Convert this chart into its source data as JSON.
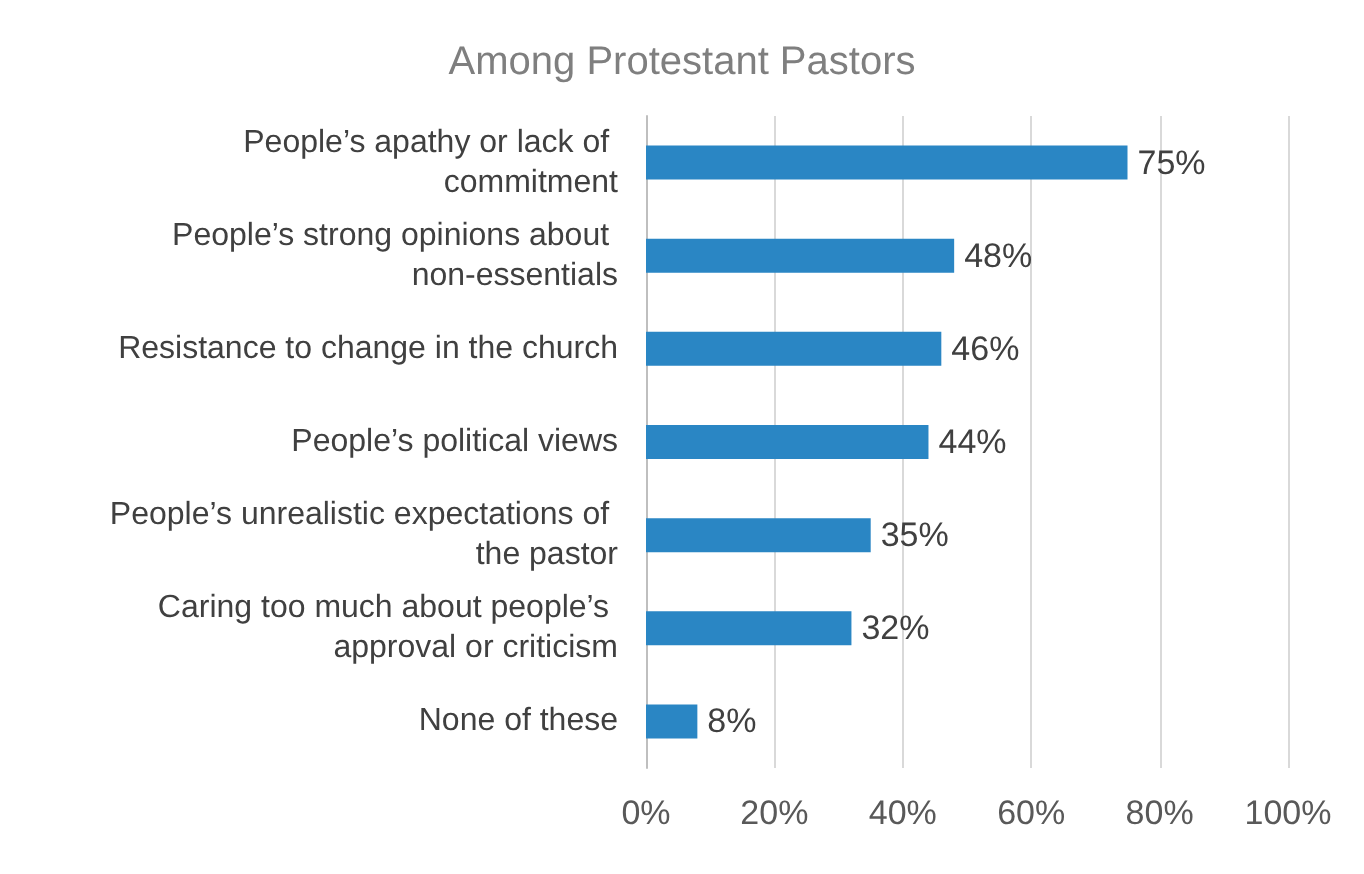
{
  "chart_data": {
    "type": "bar",
    "orientation": "horizontal",
    "title": "Among Protestant Pastors",
    "categories": [
      "People’s apathy or lack of commitment",
      "People’s strong opinions about non-essentials",
      "Resistance to change in the church",
      "People’s political views",
      "People’s unrealistic expectations of the pastor",
      "Caring too much about people’s approval or criticism",
      "None of these"
    ],
    "values": [
      75,
      48,
      46,
      44,
      35,
      32,
      8
    ],
    "value_labels": [
      "75%",
      "48%",
      "46%",
      "44%",
      "35%",
      "32%",
      "8%"
    ],
    "color": "#2a86c4",
    "xlim": [
      0,
      100
    ],
    "xticks": [
      {
        "value": 0,
        "label": "0%"
      },
      {
        "value": 20,
        "label": "20%"
      },
      {
        "value": 40,
        "label": "40%"
      },
      {
        "value": 60,
        "label": "60%"
      },
      {
        "value": 80,
        "label": "80%"
      },
      {
        "value": 100,
        "label": "100%"
      }
    ],
    "grid": "x"
  }
}
